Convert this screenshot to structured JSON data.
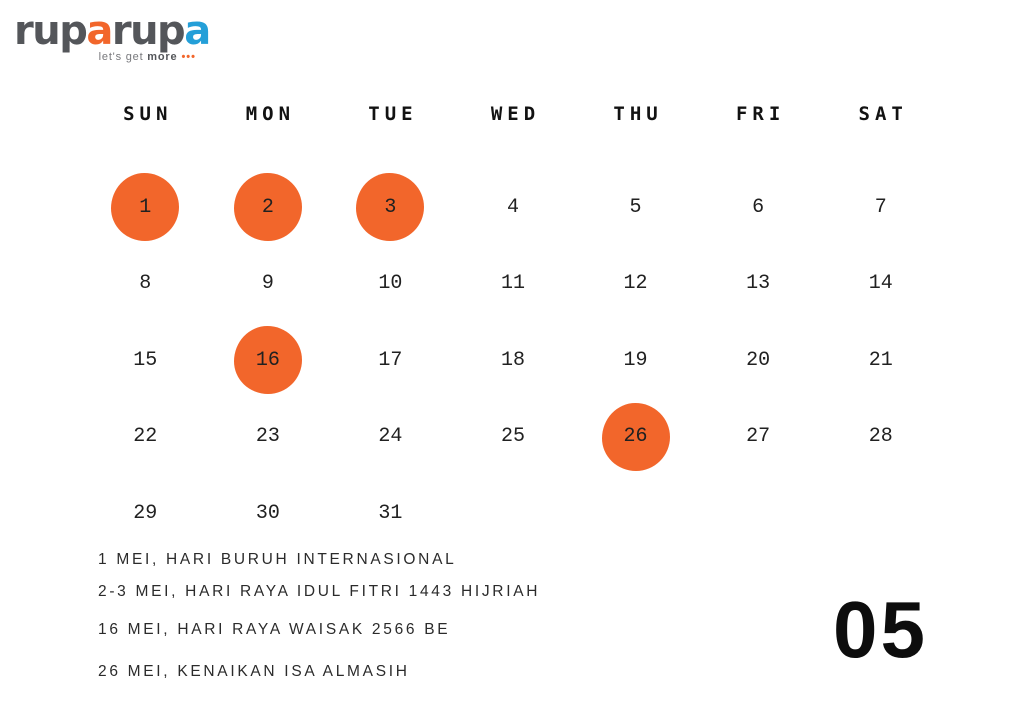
{
  "logo": {
    "wordmark_parts": [
      {
        "text": "rup",
        "color": "#54565a"
      },
      {
        "text": "a",
        "color": "#f2662b"
      },
      {
        "text": "rup",
        "color": "#54565a"
      },
      {
        "text": "a",
        "color": "#249fd8"
      }
    ],
    "tagline_prefix": "let's get ",
    "tagline_bold": "more",
    "tagline_dots": "•••"
  },
  "calendar": {
    "month_number": "05",
    "weekdays": [
      "SUN",
      "MON",
      "TUE",
      "WED",
      "THU",
      "FRI",
      "SAT"
    ],
    "weeks": [
      [
        1,
        2,
        3,
        4,
        5,
        6,
        7
      ],
      [
        8,
        9,
        10,
        11,
        12,
        13,
        14
      ],
      [
        15,
        16,
        17,
        18,
        19,
        20,
        21
      ],
      [
        22,
        23,
        24,
        25,
        26,
        27,
        28
      ],
      [
        29,
        30,
        31,
        null,
        null,
        null,
        null
      ]
    ],
    "highlighted_days": [
      1,
      2,
      3,
      16,
      26
    ],
    "highlight_color": "#f2662b"
  },
  "holidays": [
    "1 MEI, HARI BURUH INTERNASIONAL",
    "2-3 MEI, HARI RAYA IDUL FITRI 1443 HIJRIAH",
    "16 MEI, HARI RAYA WAISAK 2566 BE",
    "26 MEI, KENAIKAN ISA ALMASIH"
  ]
}
